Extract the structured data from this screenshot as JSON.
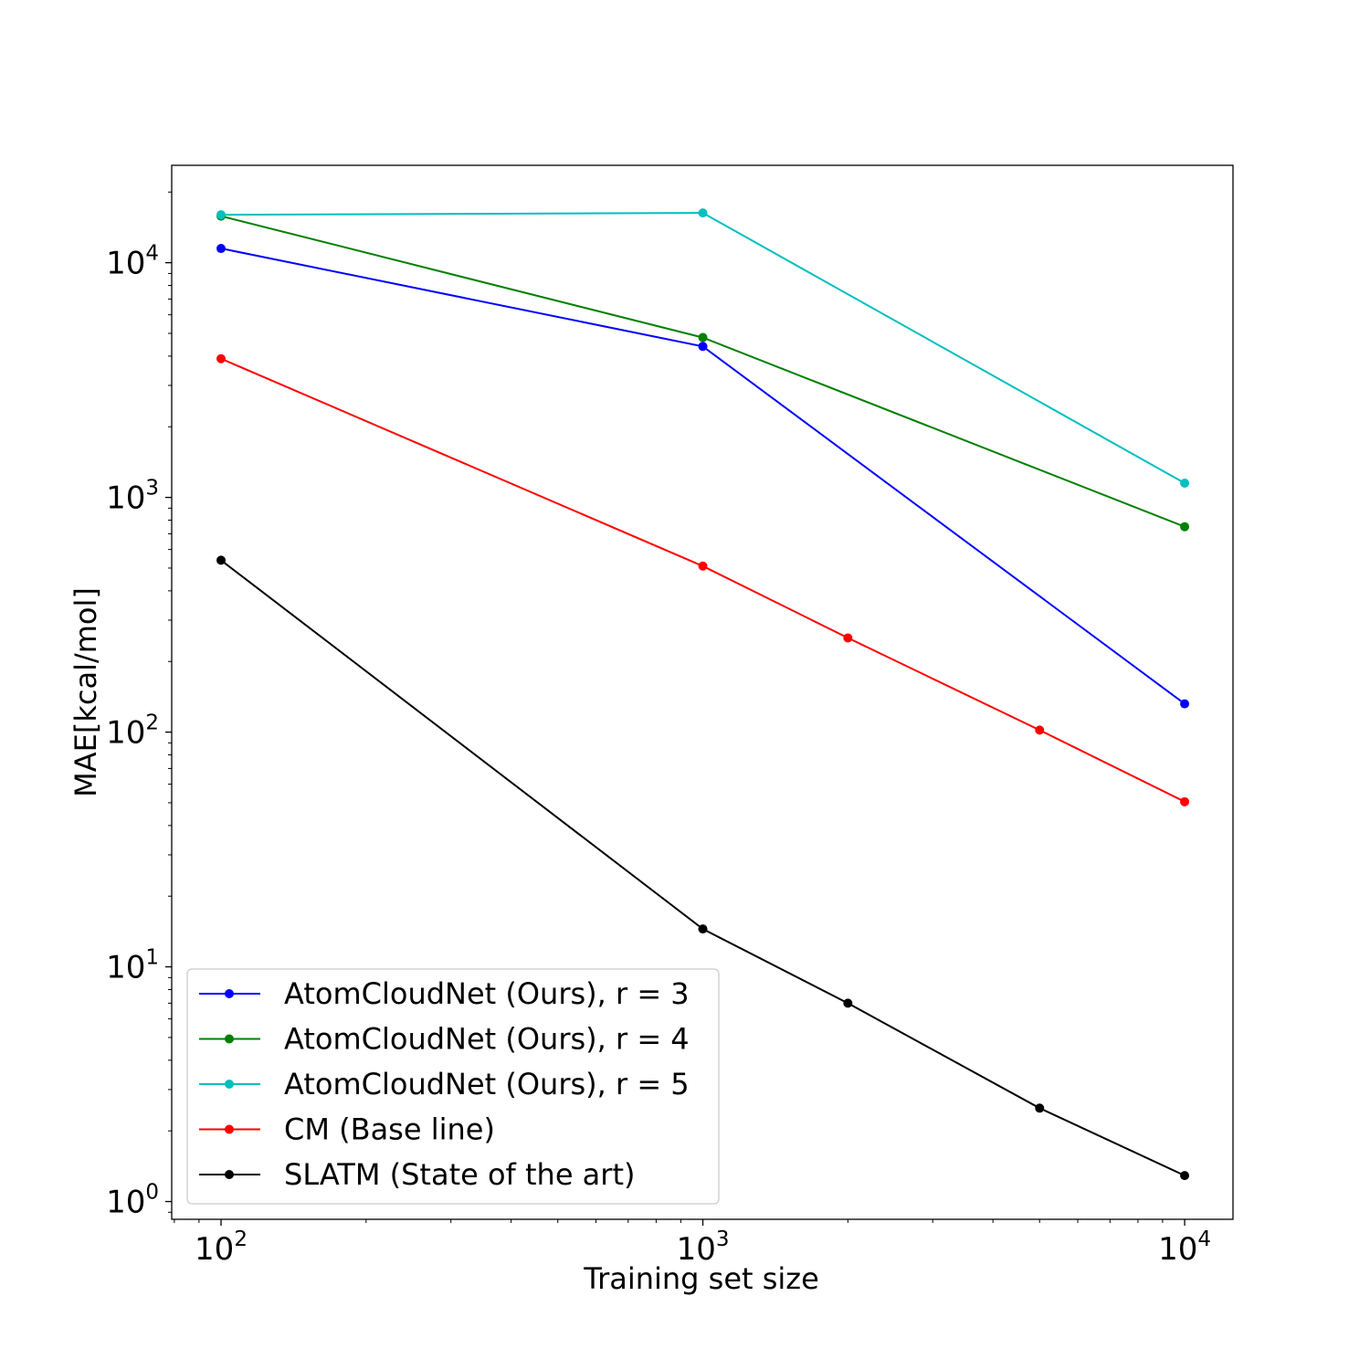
{
  "chart_data": {
    "type": "line",
    "xscale": "log",
    "yscale": "log",
    "xlabel": "Training set size",
    "ylabel": "MAE[kcal/mol]",
    "xlim": [
      79,
      12600
    ],
    "ylim": [
      0.84,
      26000
    ],
    "x_ticks": [
      {
        "value": 100,
        "base": "10",
        "exp": "2"
      },
      {
        "value": 1000,
        "base": "10",
        "exp": "3"
      },
      {
        "value": 10000,
        "base": "10",
        "exp": "4"
      }
    ],
    "y_ticks": [
      {
        "value": 1,
        "base": "10",
        "exp": "0"
      },
      {
        "value": 10,
        "base": "10",
        "exp": "1"
      },
      {
        "value": 100,
        "base": "10",
        "exp": "2"
      },
      {
        "value": 1000,
        "base": "10",
        "exp": "3"
      },
      {
        "value": 10000,
        "base": "10",
        "exp": "4"
      }
    ],
    "grid": false,
    "legend_position": "lower-left",
    "series": [
      {
        "name": "AtomCloudNet (Ours), r = 3",
        "color": "#0000ff",
        "points": [
          [
            100,
            11500
          ],
          [
            1000,
            4400
          ],
          [
            10000,
            132
          ]
        ]
      },
      {
        "name": "AtomCloudNet (Ours), r = 4",
        "color": "#008000",
        "points": [
          [
            100,
            15800
          ],
          [
            1000,
            4800
          ],
          [
            10000,
            750
          ]
        ]
      },
      {
        "name": "AtomCloudNet (Ours), r = 5",
        "color": "#00bfbf",
        "points": [
          [
            100,
            16000
          ],
          [
            1000,
            16300
          ],
          [
            10000,
            1150
          ]
        ]
      },
      {
        "name": "CM (Base line)",
        "color": "#ff0000",
        "points": [
          [
            100,
            3900
          ],
          [
            1000,
            510
          ],
          [
            2000,
            252
          ],
          [
            5000,
            102
          ],
          [
            10000,
            50.5
          ]
        ]
      },
      {
        "name": "SLATM (State of the art)",
        "color": "#000000",
        "points": [
          [
            100,
            540
          ],
          [
            1000,
            14.5
          ],
          [
            2000,
            7.0
          ],
          [
            5000,
            2.5
          ],
          [
            10000,
            1.29
          ]
        ]
      }
    ]
  }
}
